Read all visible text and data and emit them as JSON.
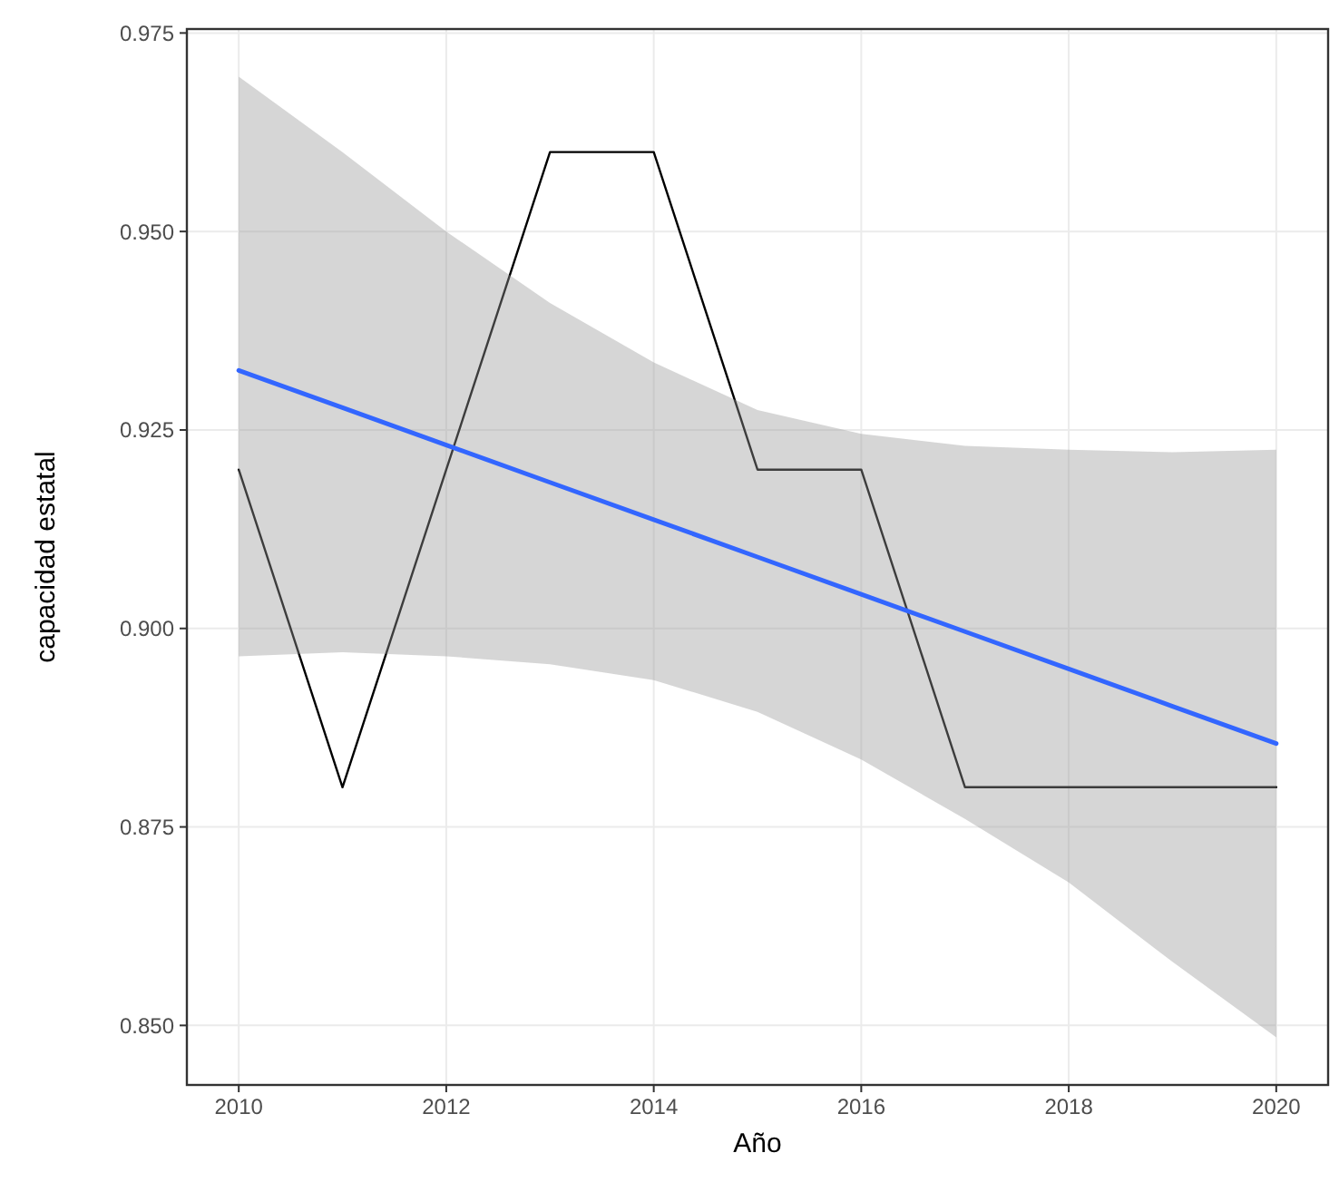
{
  "chart_data": {
    "type": "line",
    "xlabel": "Año",
    "ylabel": "capacidad estatal",
    "x": [
      2010,
      2011,
      2012,
      2013,
      2014,
      2015,
      2016,
      2017,
      2018,
      2019,
      2020
    ],
    "series": [
      {
        "color": "#000000",
        "values": [
          0.92,
          0.88,
          0.92,
          0.96,
          0.96,
          0.92,
          0.92,
          0.88,
          0.88,
          0.88,
          0.88
        ]
      },
      {
        "color": "#3366ff",
        "values": [
          0.9325,
          0.9278,
          0.9231,
          0.9184,
          0.9137,
          0.909,
          0.9043,
          0.8996,
          0.8949,
          0.8902,
          0.8855
        ],
        "lower": [
          0.8965,
          0.897,
          0.8965,
          0.8955,
          0.8935,
          0.8895,
          0.8835,
          0.876,
          0.868,
          0.858,
          0.8485
        ],
        "upper": [
          0.9695,
          0.96,
          0.95,
          0.941,
          0.9335,
          0.9275,
          0.9245,
          0.923,
          0.9225,
          0.9222,
          0.9225
        ]
      }
    ],
    "xlim": [
      2009.5,
      2020.5
    ],
    "xticks": [
      2010,
      2012,
      2014,
      2016,
      2018,
      2020
    ],
    "ylim": [
      0.8425,
      0.9755
    ],
    "yticks": [
      {
        "value": 0.85,
        "label": "0.850"
      },
      {
        "value": 0.875,
        "label": "0.875"
      },
      {
        "value": 0.9,
        "label": "0.900"
      },
      {
        "value": 0.925,
        "label": "0.925"
      },
      {
        "value": 0.95,
        "label": "0.950"
      },
      {
        "value": 0.975,
        "label": "0.975"
      }
    ],
    "grid": true,
    "marker": "none",
    "line_style": "solid"
  }
}
